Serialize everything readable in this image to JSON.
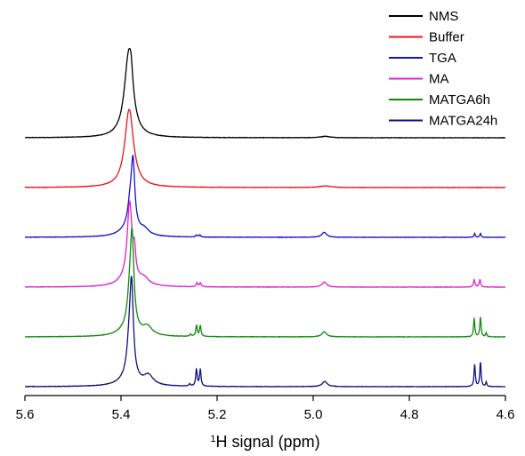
{
  "chart_data": {
    "type": "line",
    "title": "",
    "xlabel_sup": "1",
    "xlabel_main": "H signal (ppm)",
    "ylabel": "",
    "x_reversed": true,
    "xlim": [
      5.6,
      4.6
    ],
    "x_ticks": [
      5.6,
      5.4,
      5.2,
      5.0,
      4.8,
      4.6
    ],
    "x_tick_labels": [
      "5.6",
      "5.4",
      "5.2",
      "5.0",
      "4.8",
      "4.6"
    ],
    "grid": false,
    "legend_position": "top-right",
    "series": [
      {
        "name": "NMS",
        "color": "#000000",
        "offset": 5,
        "noise": 0.012,
        "peaks": [
          [
            5.384,
            4.6,
            0.011
          ],
          [
            5.379,
            0.9,
            0.004
          ],
          [
            4.975,
            0.08,
            0.012
          ]
        ]
      },
      {
        "name": "Buffer",
        "color": "#e8141a",
        "offset": 4,
        "noise": 0.012,
        "peaks": [
          [
            5.383,
            4.4,
            0.011
          ],
          [
            4.975,
            0.09,
            0.013
          ]
        ]
      },
      {
        "name": "TGA",
        "color": "#1414c8",
        "offset": 3,
        "noise": 0.012,
        "peaks": [
          [
            5.375,
            3.6,
            0.0045
          ],
          [
            5.381,
            1.2,
            0.006
          ],
          [
            5.352,
            0.35,
            0.012
          ],
          [
            5.385,
            0.4,
            0.022
          ],
          [
            5.243,
            0.12,
            0.002
          ],
          [
            5.236,
            0.12,
            0.002
          ],
          [
            4.977,
            0.28,
            0.006
          ],
          [
            4.664,
            0.22,
            0.0015
          ],
          [
            4.652,
            0.22,
            0.0015
          ]
        ]
      },
      {
        "name": "MA",
        "color": "#e020d2",
        "offset": 2,
        "noise": 0.012,
        "peaks": [
          [
            5.382,
            4.3,
            0.006
          ],
          [
            5.372,
            1.2,
            0.003
          ],
          [
            5.352,
            0.35,
            0.012
          ],
          [
            5.385,
            0.4,
            0.022
          ],
          [
            5.242,
            0.22,
            0.002
          ],
          [
            5.235,
            0.22,
            0.002
          ],
          [
            4.977,
            0.28,
            0.006
          ],
          [
            4.665,
            0.42,
            0.0018
          ],
          [
            4.653,
            0.42,
            0.0018
          ]
        ]
      },
      {
        "name": "MATGA6h",
        "color": "#108a10",
        "offset": 1,
        "noise": 0.012,
        "peaks": [
          [
            5.377,
            4.9,
            0.0045
          ],
          [
            5.382,
            1.4,
            0.006
          ],
          [
            5.345,
            0.48,
            0.012
          ],
          [
            5.385,
            0.4,
            0.022
          ],
          [
            5.243,
            0.62,
            0.0018
          ],
          [
            5.235,
            0.62,
            0.0018
          ],
          [
            5.255,
            0.12,
            0.002
          ],
          [
            4.977,
            0.28,
            0.006
          ],
          [
            4.665,
            1.05,
            0.0016
          ],
          [
            4.652,
            1.1,
            0.0016
          ],
          [
            4.64,
            0.22,
            0.0014
          ]
        ]
      },
      {
        "name": "MATGA24h",
        "color": "#10107a",
        "offset": 0,
        "noise": 0.012,
        "peaks": [
          [
            5.378,
            4.9,
            0.0045
          ],
          [
            5.383,
            1.5,
            0.006
          ],
          [
            5.343,
            0.55,
            0.012
          ],
          [
            5.385,
            0.4,
            0.022
          ],
          [
            5.243,
            0.95,
            0.0018
          ],
          [
            5.235,
            0.95,
            0.0018
          ],
          [
            5.257,
            0.12,
            0.002
          ],
          [
            4.976,
            0.3,
            0.006
          ],
          [
            4.664,
            1.25,
            0.0016
          ],
          [
            4.652,
            1.4,
            0.0016
          ],
          [
            4.64,
            0.25,
            0.0014
          ]
        ]
      }
    ]
  }
}
